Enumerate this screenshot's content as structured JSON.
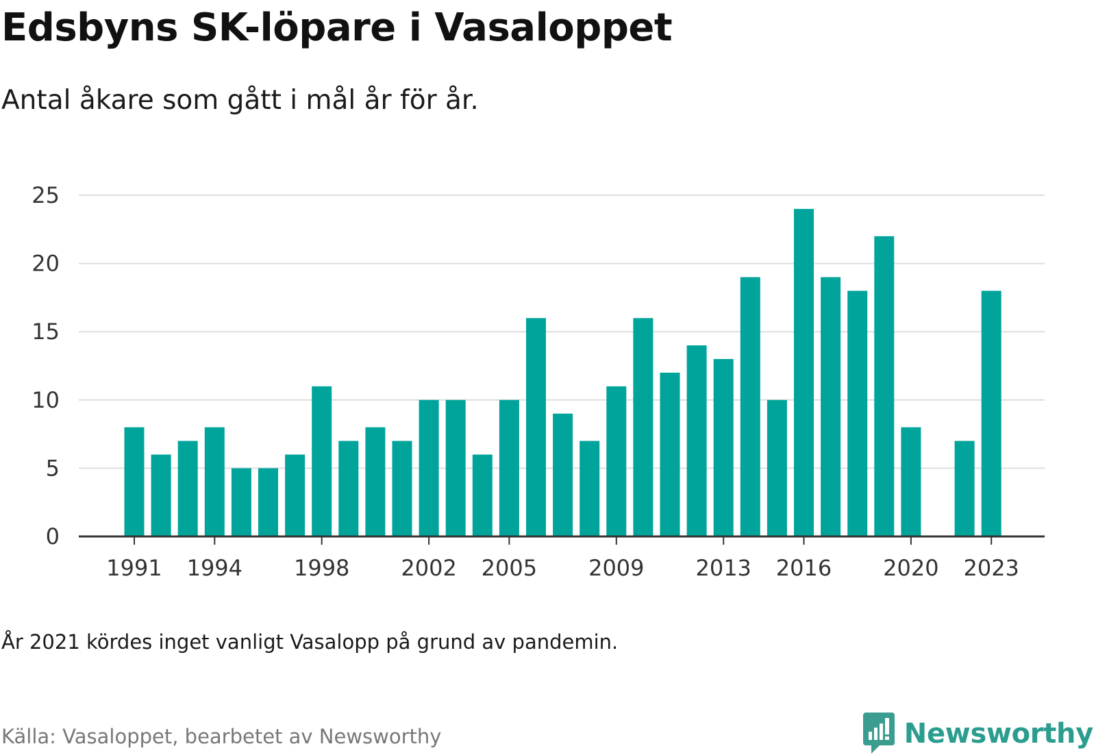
{
  "title": "Edsbyns SK-löpare i Vasaloppet",
  "subtitle": "Antal åkare som gått i mål år för år.",
  "note": "År 2021 kördes inget vanligt Vasalopp på grund av pandemin.",
  "source": "Källa: Vasaloppet, bearbetet av Newsworthy",
  "brand": {
    "name": "Newsworthy",
    "icon": "newsworthy-logo-icon",
    "color": "#3a9d90"
  },
  "chart_data": {
    "type": "bar",
    "title": "Edsbyns SK-löpare i Vasaloppet",
    "subtitle": "Antal åkare som gått i mål år för år.",
    "categories": [
      1991,
      1992,
      1993,
      1994,
      1995,
      1996,
      1997,
      1998,
      1999,
      2000,
      2001,
      2002,
      2003,
      2004,
      2005,
      2006,
      2007,
      2008,
      2009,
      2010,
      2011,
      2012,
      2013,
      2014,
      2015,
      2016,
      2017,
      2018,
      2019,
      2020,
      2021,
      2022,
      2023
    ],
    "values": [
      8,
      6,
      7,
      8,
      5,
      5,
      6,
      11,
      7,
      8,
      7,
      10,
      10,
      6,
      10,
      16,
      9,
      7,
      11,
      16,
      12,
      14,
      13,
      19,
      10,
      24,
      19,
      18,
      22,
      8,
      null,
      7,
      18
    ],
    "ylim": [
      0,
      25
    ],
    "yticks": [
      0,
      5,
      10,
      15,
      20,
      25
    ],
    "xticks": [
      1991,
      1994,
      1998,
      2002,
      2005,
      2009,
      2013,
      2016,
      2020,
      2023
    ],
    "xlabel": "",
    "ylabel": "",
    "grid": true,
    "bar_color": "#00a49a",
    "grid_color": "#dddddd",
    "axis_color": "#333333"
  }
}
